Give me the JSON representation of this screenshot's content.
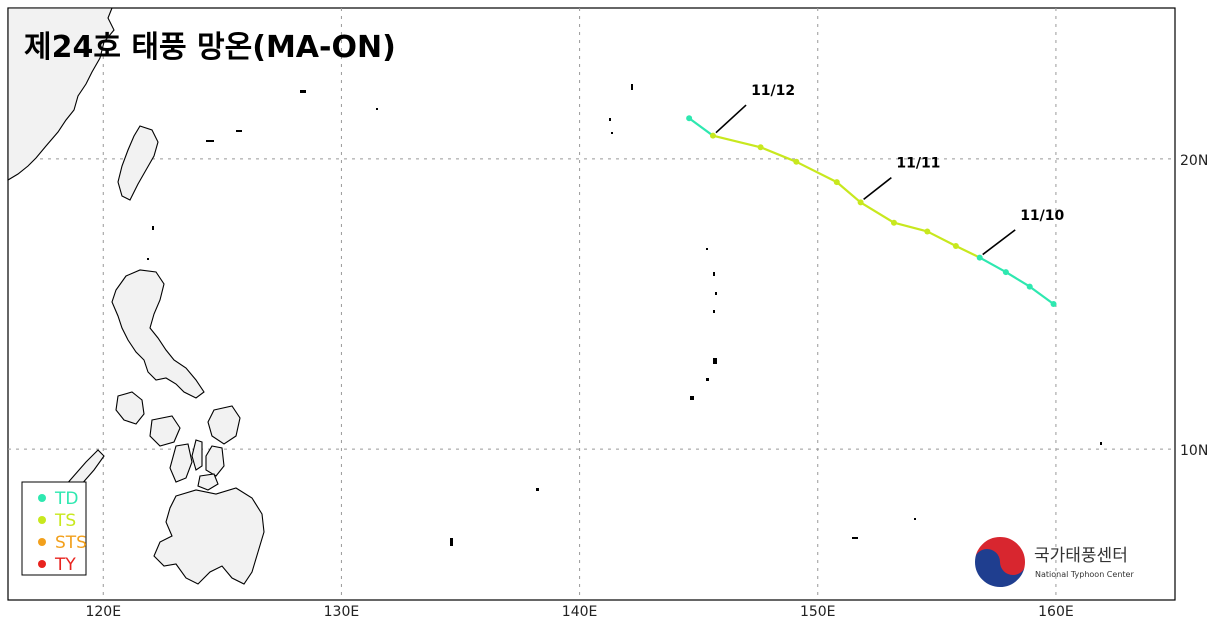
{
  "title": "제24호 태풍 망온(MA-ON)",
  "map": {
    "lon_range": [
      116,
      165
    ],
    "lat_range": [
      4.8,
      25.2
    ],
    "lon_ticks": [
      120,
      130,
      140,
      150,
      160
    ],
    "lon_tick_labels": [
      "120E",
      "130E",
      "140E",
      "150E",
      "160E"
    ],
    "lat_ticks": [
      20,
      10
    ],
    "lat_tick_labels": [
      "20N",
      "10N"
    ],
    "grid": true,
    "grid_style": "dotted"
  },
  "track": {
    "points": [
      {
        "lon": 159.9,
        "lat": 15.0,
        "cat": "TD"
      },
      {
        "lon": 158.9,
        "lat": 15.6,
        "cat": "TD"
      },
      {
        "lon": 157.9,
        "lat": 16.1,
        "cat": "TD"
      },
      {
        "lon": 156.8,
        "lat": 16.6,
        "cat": "TD"
      },
      {
        "lon": 155.8,
        "lat": 17.0,
        "cat": "TS"
      },
      {
        "lon": 154.6,
        "lat": 17.5,
        "cat": "TS"
      },
      {
        "lon": 153.2,
        "lat": 17.8,
        "cat": "TS"
      },
      {
        "lon": 151.8,
        "lat": 18.5,
        "cat": "TS"
      },
      {
        "lon": 150.8,
        "lat": 19.2,
        "cat": "TS"
      },
      {
        "lon": 149.1,
        "lat": 19.9,
        "cat": "TS"
      },
      {
        "lon": 147.6,
        "lat": 20.4,
        "cat": "TS"
      },
      {
        "lon": 145.6,
        "lat": 20.8,
        "cat": "TS"
      },
      {
        "lon": 144.6,
        "lat": 21.4,
        "cat": "TD"
      }
    ],
    "date_labels": [
      {
        "text": "11/10",
        "lon": 156.8,
        "lat": 16.6,
        "label_lon": 158.5,
        "label_lat": 17.9
      },
      {
        "text": "11/11",
        "lon": 151.8,
        "lat": 18.5,
        "label_lon": 153.3,
        "label_lat": 19.7
      },
      {
        "text": "11/12",
        "lon": 145.6,
        "lat": 20.8,
        "label_lon": 147.2,
        "label_lat": 22.2
      }
    ]
  },
  "legend": {
    "items": [
      {
        "label": "TD",
        "color": "#2ee8b0"
      },
      {
        "label": "TS",
        "color": "#c8e81e"
      },
      {
        "label": "STS",
        "color": "#f2a01c"
      },
      {
        "label": "TY",
        "color": "#e8231e"
      }
    ]
  },
  "logo": {
    "name_ko": "국가태풍센터",
    "name_en": "National Typhoon Center",
    "icon": "taegeuk-icon"
  },
  "colors": {
    "TD": "#2ee8b0",
    "TS": "#c8e81e",
    "STS": "#f2a01c",
    "TY": "#e8231e",
    "land": "#f2f2f2",
    "grid": "#999999"
  }
}
